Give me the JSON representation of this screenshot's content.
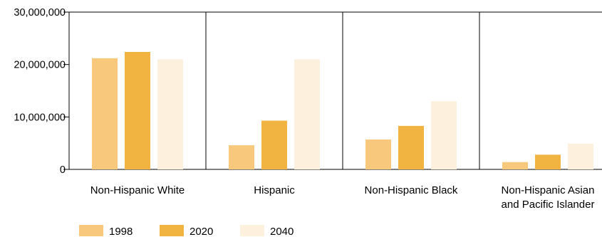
{
  "chart_data": {
    "type": "bar",
    "title": "",
    "xlabel": "",
    "ylabel": "",
    "ylim": [
      0,
      30000000
    ],
    "y_ticks": [
      "0",
      "10,000,000",
      "20,000,000",
      "30,000,000"
    ],
    "categories": [
      [
        "Non-Hispanic White"
      ],
      [
        "Hispanic"
      ],
      [
        "Non-Hispanic Black"
      ],
      [
        "Non-Hispanic Asian",
        "and Pacific Islander"
      ]
    ],
    "series": [
      {
        "name": "1998",
        "color": "#F8C97C",
        "values": [
          21200000,
          4600000,
          5700000,
          1400000
        ]
      },
      {
        "name": "2020",
        "color": "#F1B440",
        "values": [
          22400000,
          9300000,
          8300000,
          2800000
        ]
      },
      {
        "name": "2040",
        "color": "#FDF0DC",
        "values": [
          21000000,
          21000000,
          13000000,
          4900000
        ]
      }
    ],
    "grid": "vertical dividers between categories",
    "legend_position": "bottom-left"
  }
}
